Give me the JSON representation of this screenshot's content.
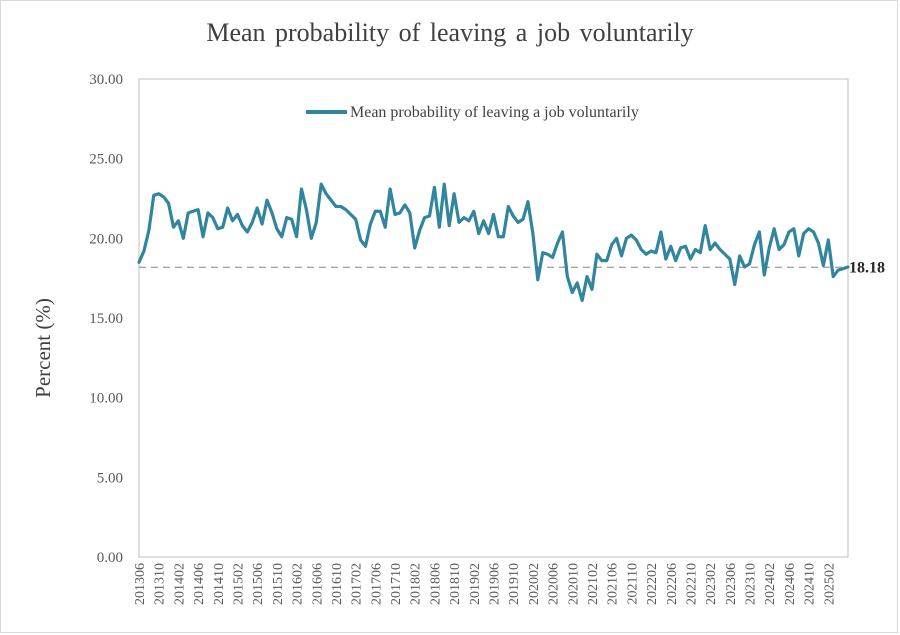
{
  "chart_data": {
    "type": "line",
    "title": "Mean probability of leaving a job voluntarily",
    "ylabel": "Percent (%)",
    "xlabel": "",
    "ylim": [
      0,
      30
    ],
    "y_ticks": [
      "0.00",
      "5.00",
      "10.00",
      "15.00",
      "20.00",
      "25.00",
      "30.00"
    ],
    "x_tick_labels": [
      "201306",
      "201310",
      "201402",
      "201406",
      "201410",
      "201502",
      "201506",
      "201510",
      "201602",
      "201606",
      "201610",
      "201702",
      "201706",
      "201710",
      "201802",
      "201806",
      "201810",
      "201902",
      "201906",
      "201910",
      "202002",
      "202006",
      "202010",
      "202102",
      "202106",
      "202110",
      "202202",
      "202206",
      "202210",
      "202302",
      "202306",
      "202310",
      "202402",
      "202406",
      "202410",
      "202502"
    ],
    "legend": "top-center inside plot",
    "grid": false,
    "series": [
      {
        "name": "Mean probability of leaving a job voluntarily",
        "color": "#31859c",
        "start": "201306",
        "values": [
          18.5,
          19.2,
          20.5,
          22.7,
          22.8,
          22.6,
          22.2,
          20.7,
          21.1,
          20.0,
          21.6,
          21.7,
          21.8,
          20.1,
          21.6,
          21.3,
          20.6,
          20.7,
          21.9,
          21.1,
          21.5,
          20.8,
          20.4,
          21.0,
          21.9,
          20.9,
          22.4,
          21.6,
          20.6,
          20.1,
          21.3,
          21.2,
          20.1,
          23.1,
          21.8,
          20.0,
          21.0,
          23.4,
          22.8,
          22.4,
          22.0,
          22.0,
          21.8,
          21.5,
          21.2,
          19.9,
          19.5,
          20.9,
          21.7,
          21.7,
          20.7,
          23.1,
          21.5,
          21.6,
          22.1,
          21.6,
          19.4,
          20.5,
          21.3,
          21.4,
          23.2,
          20.7,
          23.4,
          20.8,
          22.8,
          21.0,
          21.3,
          21.1,
          21.7,
          20.3,
          21.1,
          20.3,
          21.5,
          20.1,
          20.1,
          22.0,
          21.4,
          21.0,
          21.2,
          22.3,
          20.3,
          17.4,
          19.1,
          19.0,
          18.8,
          19.7,
          20.4,
          17.6,
          16.6,
          17.2,
          16.1,
          17.6,
          16.8,
          19.0,
          18.6,
          18.6,
          19.6,
          20.0,
          18.9,
          20.0,
          20.2,
          19.9,
          19.3,
          19.0,
          19.2,
          19.1,
          20.4,
          18.7,
          19.5,
          18.6,
          19.4,
          19.5,
          18.7,
          19.3,
          19.1,
          20.8,
          19.3,
          19.7,
          19.3,
          19.0,
          18.7,
          17.1,
          18.9,
          18.2,
          18.4,
          19.6,
          20.4,
          17.7,
          19.4,
          20.6,
          19.3,
          19.6,
          20.4,
          20.6,
          18.9,
          20.3,
          20.6,
          20.4,
          19.7,
          18.3,
          19.9,
          17.6,
          18.0,
          18.1,
          18.2
        ]
      }
    ],
    "reference_line": {
      "value": 18.18,
      "label": "18.18",
      "style": "dashed",
      "color": "#a6a6a6"
    }
  }
}
